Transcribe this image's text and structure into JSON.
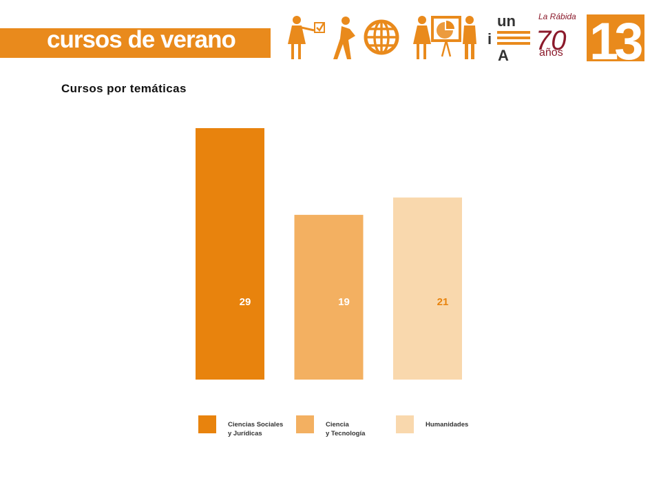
{
  "header": {
    "banner_text": "cursos de verano",
    "logos": [
      {
        "icon": "teacher-checkbox-icon"
      },
      {
        "icon": "person-pushing-globe-icon"
      },
      {
        "icon": "presenter-whiteboard-icon"
      },
      {
        "icon": "unia-logo",
        "text": "unia"
      },
      {
        "icon": "la-rabida-70-anos-logo",
        "text": "La Rábida 70 años"
      },
      {
        "icon": "year-13-logo",
        "text": "13"
      }
    ]
  },
  "section_title": "Cursos por temáticas",
  "colors": {
    "brand": "#e98a1c",
    "series": [
      "#e8830d",
      "#f3b061",
      "#f9d8ad"
    ],
    "label_colors": [
      "#ffffff",
      "#ffffff",
      "#e8830d"
    ]
  },
  "chart_data": {
    "type": "bar",
    "categories": [
      "Ciencias Sociales y Jurídicas",
      "Ciencia y Tecnología",
      "Humanidades"
    ],
    "values": [
      29,
      19,
      21
    ],
    "value_labels": [
      "29",
      "19",
      "21"
    ],
    "title": "",
    "xlabel": "",
    "ylabel": "",
    "ylim": [
      0,
      29
    ],
    "grid": false,
    "axes_visible": false,
    "legend": {
      "placement": "bottom",
      "entries": [
        [
          "Ciencias Sociales",
          "y Jurídicas"
        ],
        [
          "Ciencia",
          "y Tecnología"
        ],
        [
          "Humanidades"
        ]
      ]
    }
  }
}
